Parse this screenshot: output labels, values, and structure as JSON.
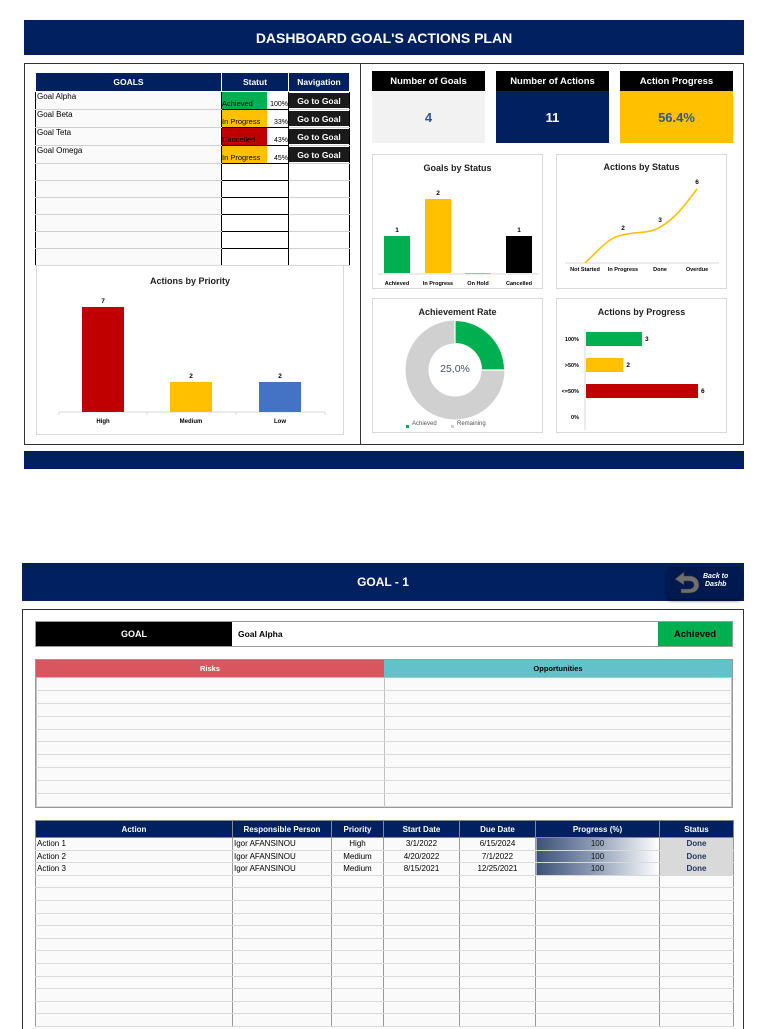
{
  "dashboard": {
    "title": "DASHBOARD GOAL'S ACTIONS PLAN",
    "goals_table": {
      "headers": [
        "GOALS",
        "Statut",
        "Navigation"
      ],
      "rows": [
        {
          "name": "Goal Alpha",
          "status": "Achieved",
          "status_color": "#00b050",
          "percent": "100%",
          "nav": "Go to Goal"
        },
        {
          "name": "Goal Beta",
          "status": "In Progress",
          "status_color": "#ffc000",
          "percent": "33%",
          "nav": "Go to Goal"
        },
        {
          "name": "Goal Teta",
          "status": "Cancelled",
          "status_color": "#c00000",
          "percent": "43%",
          "nav": "Go to Goal"
        },
        {
          "name": "Goal Omega",
          "status": "In Progress",
          "status_color": "#ffc000",
          "percent": "45%",
          "nav": "Go to Goal"
        }
      ],
      "empty_rows": 6
    },
    "kpis": [
      {
        "label": "Number of Goals",
        "value": "4",
        "bg": "#f2f2f2",
        "color": "#2f5597"
      },
      {
        "label": "Number of Actions",
        "value": "11",
        "bg": "#002060",
        "color": "#ffffff"
      },
      {
        "label": "Action Progress",
        "value": "56.4%",
        "bg": "#ffc000",
        "color": "#2f5597"
      }
    ]
  },
  "chart_data": [
    {
      "type": "bar",
      "title": "Actions by Priority",
      "categories": [
        "High",
        "Medium",
        "Low"
      ],
      "values": [
        7,
        2,
        2
      ],
      "colors": [
        "#c00000",
        "#ffc000",
        "#4472c4"
      ],
      "xlabel": "",
      "ylabel": "",
      "grid": false
    },
    {
      "type": "bar",
      "title": "Goals by Status",
      "categories": [
        "Achieved",
        "In Progress",
        "On Hold",
        "Cancelled"
      ],
      "values": [
        1,
        2,
        0,
        1
      ],
      "labels": [
        "1",
        "2",
        "",
        "1"
      ],
      "colors": [
        "#00b050",
        "#ffc000",
        "#00b0f0",
        "#000000"
      ],
      "xlabel": "",
      "ylabel": "",
      "grid": false
    },
    {
      "type": "line",
      "title": "Actions by Status",
      "categories": [
        "Not Started",
        "In Progress",
        "Done",
        "Overdue"
      ],
      "values": [
        0,
        2,
        3,
        6
      ],
      "labels": [
        "",
        "2",
        "3",
        "6"
      ],
      "color": "#ffc000",
      "smooth": true
    },
    {
      "type": "pie",
      "title": "Achievement Rate",
      "donut": true,
      "center_label": "25,0%",
      "slices": [
        {
          "label": "Achieved",
          "value": 25.0,
          "color": "#00b050"
        },
        {
          "label": "Remaining",
          "value": 75.0,
          "color": "#d0d0d0"
        }
      ],
      "legend": [
        "Achieved",
        "Remaining"
      ],
      "legend_position": "bottom"
    },
    {
      "type": "bar",
      "orientation": "horizontal",
      "title": "Actions by Progress",
      "categories": [
        "100%",
        ">50%",
        "<=50%",
        "0%"
      ],
      "values": [
        3,
        2,
        6,
        0
      ],
      "labels": [
        "3",
        "2",
        "6",
        ""
      ],
      "colors": [
        "#00b050",
        "#ffc000",
        "#c00000",
        "#a5a5a5"
      ]
    }
  ],
  "goal_page": {
    "title": "GOAL - 1",
    "back_button": {
      "line1": "Back to",
      "line2": "Dashb"
    },
    "goal_label": "GOAL",
    "goal_name": "Goal Alpha",
    "goal_status": "Achieved",
    "risks_header": "Risks",
    "opportunities_header": "Opportunities",
    "risk_rows": 10,
    "actions_table": {
      "headers": [
        "Action",
        "Responsible Person",
        "Priority",
        "Start Date",
        "Due Date",
        "Progress (%)",
        "Status"
      ],
      "rows": [
        [
          "Action 1",
          "Igor AFANSINOU",
          "High",
          "3/1/2022",
          "6/15/2024",
          "100",
          "Done"
        ],
        [
          "Action 2",
          "Igor AFANSINOU",
          "Medium",
          "4/20/2022",
          "7/1/2022",
          "100",
          "Done"
        ],
        [
          "Action 3",
          "Igor AFANSINOU",
          "Medium",
          "8/15/2021",
          "12/25/2021",
          "100",
          "Done"
        ]
      ],
      "empty_rows": 12
    }
  }
}
